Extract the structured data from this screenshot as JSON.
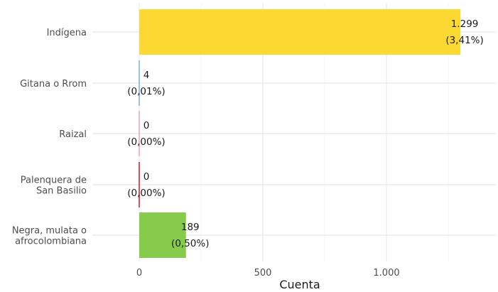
{
  "chart_data": {
    "type": "bar",
    "orientation": "horizontal",
    "xlabel": "Cuenta",
    "ylabel": "",
    "xlim": [
      0,
      1450
    ],
    "x_ticks": [
      {
        "value": 0,
        "label": "0"
      },
      {
        "value": 500,
        "label": "500"
      },
      {
        "value": 1000,
        "label": "1.000"
      }
    ],
    "grid": true,
    "categories": [
      {
        "label_lines": [
          "Indígena"
        ],
        "value": 1299,
        "value_label": "1.299",
        "pct_label": "(3,41%)",
        "color": "#fcd932"
      },
      {
        "label_lines": [
          "Gitana o Rrom"
        ],
        "value": 4,
        "value_label": "4",
        "pct_label": "(0,01%)",
        "color": "#7fb3e0"
      },
      {
        "label_lines": [
          "Raizal"
        ],
        "value": 0,
        "value_label": "0",
        "pct_label": "(0,00%)",
        "color": "#f2a6b5"
      },
      {
        "label_lines": [
          "Palenquera de",
          "San Basilio"
        ],
        "value": 0,
        "value_label": "0",
        "pct_label": "(0,00%)",
        "color": "#d9232d"
      },
      {
        "label_lines": [
          "Negra, mulata o",
          "afrocolombiana"
        ],
        "value": 189,
        "value_label": "189",
        "pct_label": "(0,50%)",
        "color": "#86cb4b"
      }
    ]
  }
}
